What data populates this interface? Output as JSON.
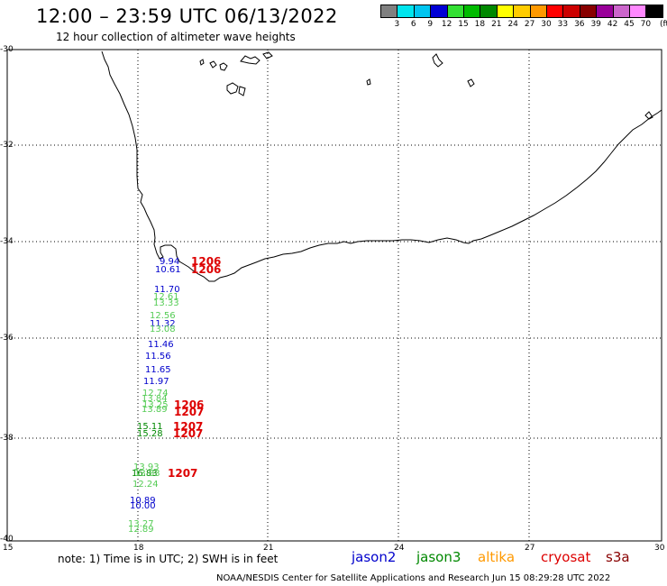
{
  "title": "12:00 – 23:59 UTC 06/13/2022",
  "subtitle": "12 hour collection of altimeter wave heights",
  "colorbar": {
    "unit": "(ft)",
    "colors": [
      "#808080",
      "#00e5ee",
      "#00c5f0",
      "#0000d5",
      "#33e033",
      "#00bb00",
      "#008800",
      "#ffff00",
      "#ffcc00",
      "#ff9900",
      "#ff0000",
      "#cc0000",
      "#880000",
      "#990099",
      "#cc66cc",
      "#ff88ff",
      "#000000"
    ],
    "labels": [
      "3",
      "6",
      "9",
      "12",
      "15",
      "18",
      "21",
      "24",
      "27",
      "30",
      "33",
      "36",
      "39",
      "42",
      "45",
      "70"
    ]
  },
  "axes": {
    "lat_labels": [
      "-30",
      "-32",
      "-34",
      "-36",
      "-38",
      "-40"
    ],
    "lon_labels": [
      "15",
      "18",
      "21",
      "24",
      "27",
      "30"
    ]
  },
  "observations": [
    {
      "text": "9.94",
      "color": "#0000cc"
    },
    {
      "text": "10.61",
      "color": "#0000cc"
    },
    {
      "text": "11.70",
      "color": "#0000cc"
    },
    {
      "text": "12.61",
      "color": "#55cc55"
    },
    {
      "text": "13.33",
      "color": "#55cc55"
    },
    {
      "text": "12.56",
      "color": "#55cc55"
    },
    {
      "text": "11.32",
      "color": "#0000cc"
    },
    {
      "text": "13.08",
      "color": "#55cc55"
    },
    {
      "text": "11.46",
      "color": "#0000cc"
    },
    {
      "text": "11.56",
      "color": "#0000cc"
    },
    {
      "text": "11.65",
      "color": "#0000cc"
    },
    {
      "text": "11.97",
      "color": "#0000cc"
    },
    {
      "text": "12.74",
      "color": "#55cc55"
    },
    {
      "text": "13.84",
      "color": "#55cc55"
    },
    {
      "text": "13.25",
      "color": "#55cc55"
    },
    {
      "text": "13.89",
      "color": "#55cc55"
    },
    {
      "text": "15.11",
      "color": "#008800"
    },
    {
      "text": "15.28",
      "color": "#008800"
    },
    {
      "text": "13.93",
      "color": "#55cc55"
    },
    {
      "text": "16.83",
      "color": "#008800"
    },
    {
      "text": "13.83",
      "color": "#55cc55"
    },
    {
      "text": "12.24",
      "color": "#55cc55"
    },
    {
      "text": "10.89",
      "color": "#0000cc"
    },
    {
      "text": "10.00",
      "color": "#0000cc"
    },
    {
      "text": "13.27",
      "color": "#55cc55"
    },
    {
      "text": "12.89",
      "color": "#55cc55"
    }
  ],
  "time_labels": [
    {
      "text": "1206",
      "color": "#dd0000"
    },
    {
      "text": "1206",
      "color": "#dd0000"
    },
    {
      "text": "1206",
      "color": "#dd0000"
    },
    {
      "text": "1207",
      "color": "#dd0000"
    },
    {
      "text": "1207",
      "color": "#dd0000"
    },
    {
      "text": "1207",
      "color": "#dd0000"
    },
    {
      "text": "1207",
      "color": "#dd0000"
    }
  ],
  "note": "note: 1) Time is in UTC; 2) SWH is in feet",
  "legend": [
    {
      "name": "jason2",
      "color": "#0000cc"
    },
    {
      "name": "jason3",
      "color": "#008800"
    },
    {
      "name": "altika",
      "color": "#ff9900"
    },
    {
      "name": "cryosat",
      "color": "#dd0000"
    },
    {
      "name": "s3a",
      "color": "#880000"
    }
  ],
  "footer": "NOAA/NESDIS Center for Satellite Applications and Research    Jun 15 08:29:28 UTC 2022"
}
